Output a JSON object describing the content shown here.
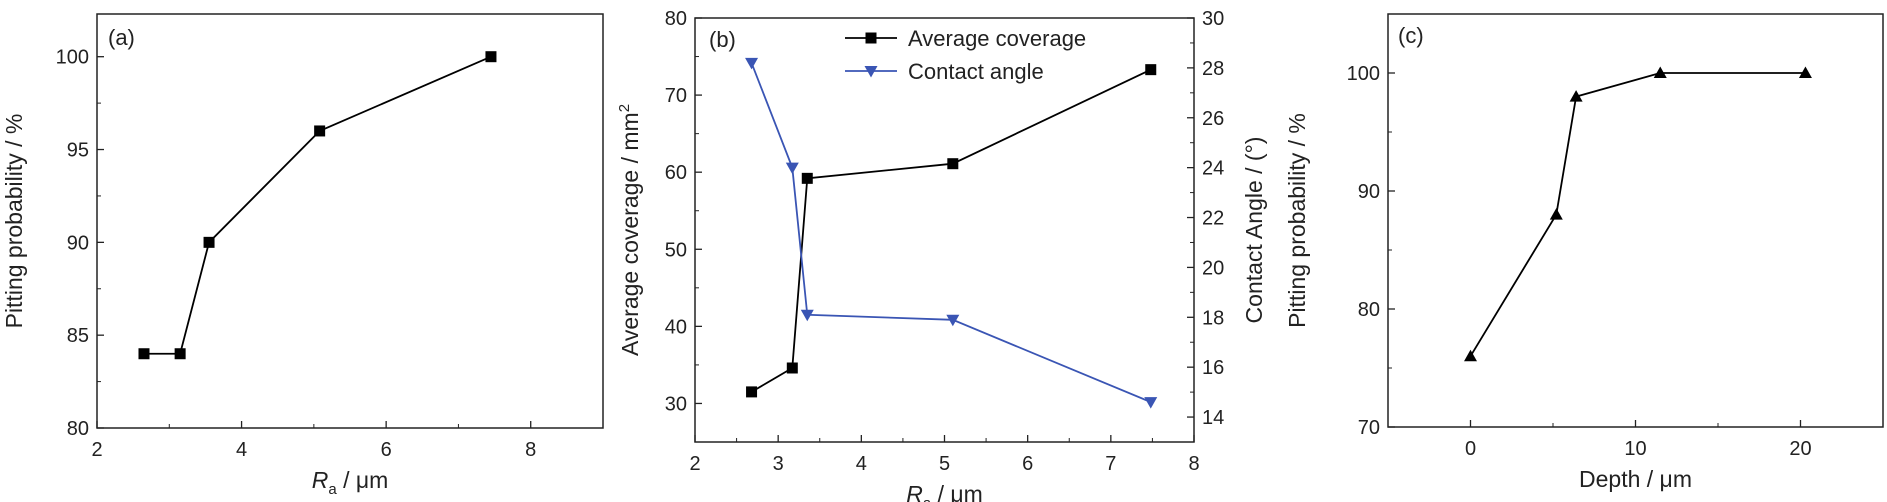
{
  "chart_data": [
    {
      "type": "line",
      "panel": "(a)",
      "xlabel": "R",
      "xlabel_sub": "a",
      "xlabel_unit": " / μm",
      "ylabel": "Pitting probability / %",
      "xlim": [
        2,
        9
      ],
      "ylim": [
        80,
        102.3
      ],
      "xticks": [
        "2",
        "4",
        "6",
        "8"
      ],
      "yticks": [
        "80",
        "85",
        "90",
        "95",
        "100"
      ],
      "series": [
        {
          "marker": "square",
          "color": "#000000",
          "x": [
            2.65,
            3.15,
            3.55,
            5.08,
            7.45
          ],
          "y": [
            84,
            84,
            90,
            96,
            100
          ]
        }
      ]
    },
    {
      "type": "line",
      "panel": "(b)",
      "xlabel": "R",
      "xlabel_sub": "a",
      "xlabel_unit": " / μm",
      "ylabel": "Average coverage / mm",
      "ylabel_sup": "2",
      "y2label": "Contact Angle / (°)",
      "xlim": [
        2,
        8
      ],
      "ylim": [
        25,
        80
      ],
      "y2lim": [
        13,
        30
      ],
      "xticks": [
        "2",
        "3",
        "4",
        "5",
        "6",
        "7",
        "8"
      ],
      "yticks": [
        "30",
        "40",
        "50",
        "60",
        "70",
        "80"
      ],
      "y2ticks": [
        "14",
        "16",
        "18",
        "20",
        "22",
        "24",
        "26",
        "28",
        "30"
      ],
      "legend": "top-center",
      "series": [
        {
          "name": "Average coverage",
          "marker": "square",
          "color": "#000000",
          "axis": "left",
          "x": [
            2.68,
            3.17,
            3.35,
            5.1,
            7.48
          ],
          "y": [
            31.5,
            34.6,
            59.2,
            61.1,
            73.3
          ]
        },
        {
          "name": "Contact angle",
          "marker": "triangle-down",
          "color": "#3a55b4",
          "axis": "right",
          "x": [
            2.68,
            3.17,
            3.35,
            5.1,
            7.48
          ],
          "y": [
            28.2,
            24.0,
            18.1,
            17.9,
            14.6
          ]
        }
      ]
    },
    {
      "type": "line",
      "panel": "(c)",
      "xlabel": "Depth / μm",
      "ylabel": "Pitting probability / %",
      "xlim": [
        -5,
        25
      ],
      "ylim": [
        70,
        105
      ],
      "xticks": [
        "0",
        "10",
        "20"
      ],
      "yticks": [
        "70",
        "80",
        "90",
        "100"
      ],
      "series": [
        {
          "marker": "triangle-up",
          "color": "#000000",
          "x": [
            0,
            5.2,
            6.4,
            11.5,
            20.3
          ],
          "y": [
            76,
            88,
            98,
            100,
            100
          ]
        }
      ]
    }
  ]
}
